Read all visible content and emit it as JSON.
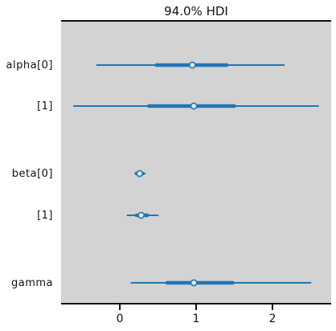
{
  "chart_data": {
    "type": "forest",
    "title": "94.0% HDI",
    "xlim": [
      -0.77,
      2.77
    ],
    "xticks": [
      0,
      1,
      2
    ],
    "grid": false,
    "colors": {
      "plot_background": "#d3d3d3",
      "series": "#1f77b4",
      "median_fill": "#e6e6e6"
    },
    "rows": [
      {
        "label": "alpha[0]",
        "hdi": [
          -0.3,
          2.15
        ],
        "iqr": [
          0.48,
          1.4
        ],
        "median": 0.95
      },
      {
        "label": "[1]",
        "hdi": [
          -0.6,
          2.6
        ],
        "iqr": [
          0.38,
          1.5
        ],
        "median": 0.97
      },
      {
        "label": "beta[0]",
        "hdi": [
          0.2,
          0.33
        ],
        "iqr": [
          0.22,
          0.3
        ],
        "median": 0.26
      },
      {
        "label": "[1]",
        "hdi": [
          0.1,
          0.5
        ],
        "iqr": [
          0.22,
          0.36
        ],
        "median": 0.28
      },
      {
        "label": "gamma",
        "hdi": [
          0.15,
          2.5
        ],
        "iqr": [
          0.62,
          1.48
        ],
        "median": 0.97
      }
    ]
  }
}
